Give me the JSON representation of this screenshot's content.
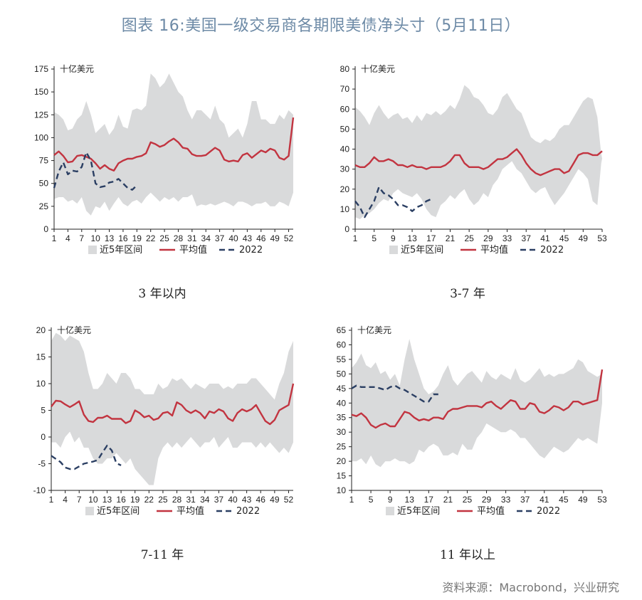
{
  "title": "图表 16:美国一级交易商各期限美债净头寸（5月11日）",
  "source": "资料来源：Macrobond，兴业研究",
  "colors": {
    "band": "#d9dadb",
    "avg": "#c23440",
    "y2022": "#2b3f63",
    "title": "#6d8aa6"
  },
  "chart_data": [
    {
      "type": "area",
      "caption": "3 年以内",
      "unit": "十亿美元",
      "ylim": [
        0,
        175
      ],
      "yticks": [
        0,
        25,
        50,
        75,
        100,
        125,
        150,
        175
      ],
      "xlim": [
        1,
        53
      ],
      "xticks": [
        1,
        4,
        7,
        10,
        13,
        16,
        19,
        22,
        25,
        28,
        31,
        34,
        37,
        40,
        43,
        46,
        49,
        52
      ],
      "legend": [
        "近5年区间",
        "平均值",
        "2022"
      ],
      "band_upper": [
        128,
        125,
        120,
        108,
        110,
        120,
        125,
        140,
        125,
        105,
        110,
        115,
        103,
        110,
        125,
        112,
        110,
        130,
        132,
        130,
        135,
        170,
        165,
        155,
        160,
        170,
        160,
        150,
        145,
        130,
        120,
        130,
        130,
        125,
        120,
        135,
        120,
        115,
        100,
        105,
        110,
        100,
        115,
        140,
        140,
        120,
        120,
        115,
        115,
        125,
        120,
        130,
        125
      ],
      "band_lower": [
        33,
        35,
        35,
        30,
        32,
        28,
        35,
        20,
        15,
        25,
        23,
        30,
        20,
        28,
        35,
        28,
        25,
        30,
        32,
        28,
        35,
        40,
        35,
        30,
        35,
        32,
        35,
        30,
        35,
        35,
        38,
        25,
        27,
        26,
        28,
        26,
        28,
        30,
        28,
        25,
        30,
        30,
        28,
        25,
        28,
        28,
        30,
        25,
        25,
        30,
        28,
        25,
        40
      ],
      "avg": [
        81,
        85,
        80,
        73,
        74,
        80,
        81,
        79,
        77,
        72,
        66,
        70,
        66,
        64,
        72,
        75,
        77,
        77,
        79,
        80,
        83,
        95,
        93,
        90,
        92,
        96,
        99,
        95,
        89,
        88,
        82,
        80,
        80,
        81,
        85,
        89,
        86,
        76,
        74,
        75,
        74,
        81,
        83,
        78,
        82,
        86,
        84,
        88,
        86,
        78,
        76,
        80,
        122
      ],
      "y2022": [
        45,
        63,
        73,
        60,
        64,
        63,
        68,
        84,
        75,
        50,
        46,
        47,
        51,
        52,
        55,
        50,
        45,
        43,
        48
      ]
    },
    {
      "type": "area",
      "caption": "3-7 年",
      "unit": "十亿美元",
      "ylim": [
        0,
        80
      ],
      "yticks": [
        0,
        10,
        20,
        30,
        40,
        50,
        60,
        70,
        80
      ],
      "xlim": [
        1,
        53
      ],
      "xticks": [
        1,
        5,
        9,
        13,
        17,
        21,
        25,
        29,
        33,
        37,
        41,
        45,
        49,
        53
      ],
      "legend": [
        "近5年区间",
        "平均值",
        "2022"
      ],
      "band_upper": [
        61,
        59,
        56,
        52,
        58,
        62,
        58,
        55,
        57,
        58,
        55,
        56,
        53,
        57,
        54,
        58,
        57,
        59,
        57,
        59,
        62,
        60,
        65,
        72,
        70,
        66,
        65,
        62,
        58,
        57,
        60,
        66,
        68,
        64,
        60,
        58,
        52,
        46,
        44,
        43,
        45,
        44,
        46,
        50,
        52,
        52,
        56,
        60,
        64,
        66,
        65,
        56,
        33
      ],
      "band_lower": [
        6,
        5,
        7,
        8,
        10,
        13,
        15,
        14,
        18,
        20,
        18,
        17,
        16,
        18,
        15,
        10,
        7,
        6,
        12,
        14,
        17,
        15,
        18,
        20,
        15,
        12,
        14,
        18,
        16,
        22,
        25,
        30,
        32,
        34,
        30,
        28,
        24,
        20,
        18,
        20,
        21,
        16,
        12,
        15,
        18,
        22,
        26,
        30,
        28,
        25,
        14,
        12,
        38
      ],
      "avg": [
        32,
        31,
        31,
        33,
        36,
        34,
        34,
        35,
        34,
        32,
        32,
        31,
        32,
        31,
        31,
        30,
        31,
        31,
        31,
        32,
        34,
        37,
        37,
        33,
        31,
        31,
        31,
        30,
        31,
        33,
        35,
        35,
        36,
        38,
        40,
        37,
        33,
        30,
        28,
        27,
        28,
        29,
        30,
        30,
        28,
        29,
        33,
        37,
        38,
        38,
        37,
        37,
        39
      ],
      "y2022": [
        14,
        11,
        6,
        10,
        14,
        21,
        18,
        17,
        15,
        12,
        12,
        11,
        9,
        11,
        12,
        14,
        15
      ]
    },
    {
      "type": "area",
      "caption": "7-11 年",
      "unit": "十亿美元",
      "ylim": [
        -10,
        20
      ],
      "yticks": [
        -10,
        -5,
        0,
        5,
        10,
        15,
        20
      ],
      "xlim": [
        1,
        53
      ],
      "xticks": [
        1,
        4,
        7,
        10,
        13,
        16,
        19,
        22,
        25,
        28,
        31,
        34,
        37,
        40,
        43,
        46,
        49,
        52
      ],
      "legend": [
        "近5年区间",
        "平均值",
        "2022"
      ],
      "band_upper": [
        18,
        19.5,
        19,
        18,
        19,
        18.5,
        18,
        16,
        12,
        9,
        9,
        10,
        12,
        11,
        10,
        12,
        12,
        11,
        9,
        9,
        8,
        8,
        8,
        10,
        9,
        9.5,
        11,
        10.5,
        11,
        10,
        9,
        10,
        9.5,
        9,
        10,
        10,
        10,
        9,
        9.5,
        9,
        10,
        10,
        10,
        11,
        11,
        10,
        9,
        8,
        7,
        10,
        12,
        16,
        18
      ],
      "band_lower": [
        -1,
        -1,
        -2,
        0,
        1,
        -1,
        0,
        -2,
        -2,
        -4,
        -5,
        -5,
        -4,
        -4,
        -3,
        -4,
        -5,
        -4,
        -6,
        -7,
        -8,
        -9,
        -9,
        -4,
        -2,
        -1,
        -2,
        -1,
        -2,
        -1,
        0,
        -1,
        -2,
        -1,
        -1,
        0,
        -2,
        -1,
        0,
        -2,
        -2,
        -1,
        -1,
        -1,
        -2,
        -1,
        -2,
        -1,
        -2,
        -3,
        -2,
        -3,
        -1
      ],
      "avg": [
        5.7,
        6.8,
        6.7,
        6.1,
        5.6,
        6.1,
        6.7,
        4.2,
        3.0,
        2.8,
        3.6,
        3.6,
        4.0,
        3.4,
        3.4,
        3.4,
        2.6,
        3.0,
        5.0,
        4.5,
        3.7,
        4.0,
        3.2,
        3.5,
        4.5,
        4.7,
        4.0,
        6.5,
        6.0,
        5.0,
        4.5,
        5.0,
        4.5,
        3.5,
        4.8,
        4.5,
        5.2,
        4.8,
        3.5,
        3.0,
        4.5,
        5.2,
        4.8,
        5.2,
        6.0,
        4.5,
        3.0,
        2.4,
        3.2,
        5.0,
        5.5,
        6.0,
        10.0
      ],
      "y2022": [
        -3.5,
        -4.1,
        -4.7,
        -5.7,
        -6,
        -6,
        -5.5,
        -5,
        -4.8,
        -4.6,
        -4.3,
        -2.9,
        -1.6,
        -2.5,
        -4.9,
        -5.3
      ]
    },
    {
      "type": "area",
      "caption": "11 年以上",
      "unit": "十亿美元",
      "ylim": [
        10,
        65
      ],
      "yticks": [
        10,
        15,
        20,
        25,
        30,
        35,
        40,
        45,
        50,
        55,
        60,
        65
      ],
      "xlim": [
        1,
        53
      ],
      "xticks": [
        1,
        5,
        9,
        13,
        17,
        21,
        25,
        29,
        33,
        37,
        41,
        45,
        49,
        53
      ],
      "legend": [
        "近5年区间",
        "平均值",
        "2022"
      ],
      "band_upper": [
        52,
        54,
        57,
        53,
        52,
        54,
        50,
        51,
        48,
        50,
        46,
        55,
        62,
        55,
        50,
        45,
        43,
        44,
        46,
        50,
        53,
        48,
        46,
        48,
        50,
        51,
        49,
        47,
        51,
        49,
        48,
        50,
        49,
        48,
        52,
        48,
        47,
        48,
        50,
        52,
        49,
        50,
        49,
        50,
        50,
        51,
        52,
        55,
        54,
        51,
        50,
        49,
        50
      ],
      "band_lower": [
        20,
        20,
        21,
        19,
        22,
        19,
        18,
        20,
        20,
        21,
        20,
        20,
        19,
        20,
        24,
        23,
        25,
        26,
        25,
        22,
        22,
        23,
        22,
        26,
        24,
        24,
        28,
        30,
        33,
        32,
        31,
        30,
        30,
        31,
        30,
        28,
        28,
        26,
        24,
        22,
        21,
        23,
        25,
        24,
        23,
        24,
        26,
        28,
        27,
        28,
        27,
        26,
        40
      ],
      "avg": [
        36,
        35.5,
        36.5,
        35,
        32.5,
        31.5,
        32.5,
        33,
        32,
        32,
        34.5,
        37,
        36.5,
        35,
        34,
        34.5,
        34,
        35,
        35,
        34.5,
        37,
        38,
        38,
        38.5,
        39,
        39,
        39,
        38.5,
        40,
        40.5,
        39,
        38,
        39.5,
        41,
        40.5,
        38,
        38,
        40,
        39.5,
        37,
        36.5,
        37.5,
        39,
        38.5,
        37.5,
        38.5,
        40.5,
        40.5,
        39.5,
        40,
        40.5,
        41,
        51.5
      ],
      "y2022": [
        45,
        46,
        45.5,
        45.5,
        45.5,
        45.5,
        45,
        44.5,
        45.5,
        46,
        45,
        44.5,
        43.5,
        42.5,
        41.5,
        40.5,
        40.5,
        43,
        43
      ]
    }
  ]
}
